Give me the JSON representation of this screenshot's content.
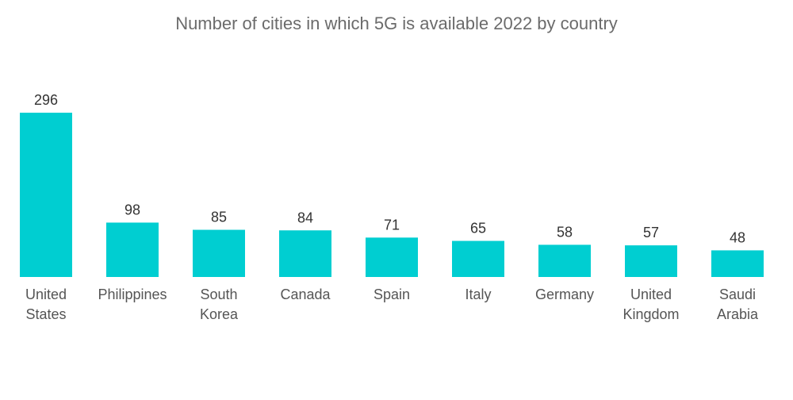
{
  "chart_data": {
    "type": "bar",
    "title": "Number of cities in which 5G is available 2022 by country",
    "xlabel": "",
    "ylabel": "",
    "categories": [
      [
        "United",
        "States"
      ],
      [
        "Philippines"
      ],
      [
        "South",
        "Korea"
      ],
      [
        "Canada"
      ],
      [
        "Spain"
      ],
      [
        "Italy"
      ],
      [
        "Germany"
      ],
      [
        "United",
        "Kingdom"
      ],
      [
        "Saudi",
        "Arabia"
      ]
    ],
    "values": [
      296,
      98,
      85,
      84,
      71,
      65,
      58,
      57,
      48
    ],
    "data_labels": [
      "296",
      "98",
      "85",
      "84",
      "71",
      "65",
      "58",
      "57",
      "48"
    ],
    "ylim": [
      0,
      296
    ],
    "grid": false,
    "legend": "none",
    "bar_color": "#00CED1"
  }
}
